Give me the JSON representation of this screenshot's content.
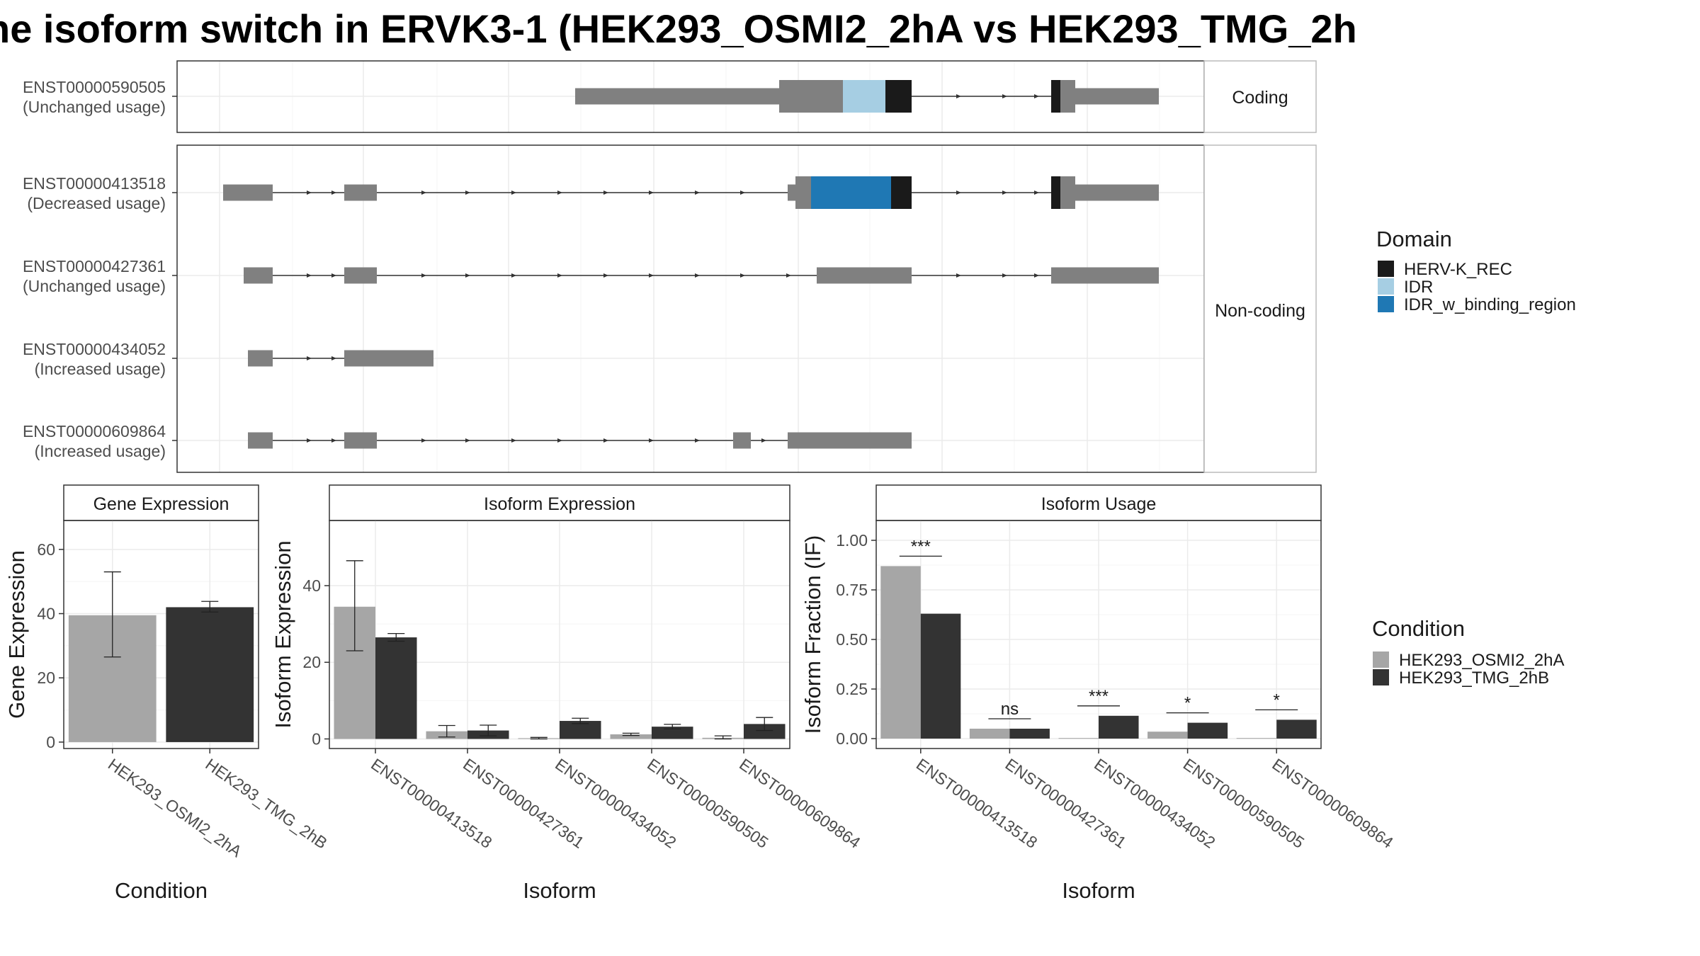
{
  "title": "ne isoform switch in ERVK3-1 (HEK293_OSMI2_2hA vs HEK293_TMG_2h",
  "colors": {
    "exon": "#808080",
    "HERV-K_REC": "#1a1a1a",
    "IDR": "#a6cee3",
    "IDR_w_binding_region": "#1f78b4",
    "HEK293_OSMI2_2hA": "#a6a6a6",
    "HEK293_TMG_2hB": "#333333"
  },
  "structure": {
    "facet_coding": "Coding",
    "facet_noncoding": "Non-coding",
    "domain_legend_title": "Domain",
    "domains": [
      "HERV-K_REC",
      "IDR",
      "IDR_w_binding_region"
    ],
    "transcripts": [
      {
        "id": "ENST00000590505",
        "usage": "(Unchanged usage)",
        "group": "coding"
      },
      {
        "id": "ENST00000413518",
        "usage": "(Decreased usage)",
        "group": "noncoding"
      },
      {
        "id": "ENST00000427361",
        "usage": "(Unchanged usage)",
        "group": "noncoding"
      },
      {
        "id": "ENST00000434052",
        "usage": "(Increased usage)",
        "group": "noncoding"
      },
      {
        "id": "ENST00000609864",
        "usage": "(Increased usage)",
        "group": "noncoding"
      }
    ]
  },
  "condition_legend": {
    "title": "Condition",
    "items": [
      "HEK293_OSMI2_2hA",
      "HEK293_TMG_2hB"
    ]
  },
  "chart_data": [
    {
      "type": "bar",
      "title": "Gene Expression",
      "xlabel": "Condition",
      "ylabel": "Gene Expression",
      "categories": [
        "HEK293_OSMI2_2hA",
        "HEK293_TMG_2hB"
      ],
      "values": [
        39.5,
        42.0
      ],
      "error_low": [
        26.5,
        40.5
      ],
      "error_high": [
        53.0,
        43.8
      ],
      "ylim": [
        -2,
        69
      ],
      "yticks": [
        0,
        20,
        40,
        60
      ],
      "ytick_labels": [
        "0",
        "20",
        "40",
        "60"
      ]
    },
    {
      "type": "bar",
      "title": "Isoform Expression",
      "xlabel": "Isoform",
      "ylabel": "Isoform Expression",
      "categories": [
        "ENST00000413518",
        "ENST00000427361",
        "ENST00000434052",
        "ENST00000590505",
        "ENST00000609864"
      ],
      "series": [
        {
          "name": "HEK293_OSMI2_2hA",
          "values": [
            34.5,
            2.0,
            0.2,
            1.2,
            0.3
          ],
          "error_low": [
            23.0,
            0.5,
            0.0,
            0.9,
            0.0
          ],
          "error_high": [
            46.5,
            3.5,
            0.4,
            1.5,
            0.8
          ]
        },
        {
          "name": "HEK293_TMG_2hB",
          "values": [
            26.5,
            2.2,
            4.7,
            3.2,
            3.9
          ],
          "error_low": [
            25.5,
            0.8,
            4.0,
            2.6,
            2.2
          ],
          "error_high": [
            27.5,
            3.6,
            5.4,
            3.8,
            5.6
          ]
        }
      ],
      "ylim": [
        -2.5,
        57
      ],
      "yticks": [
        0,
        20,
        40
      ],
      "ytick_labels": [
        "0",
        "20",
        "40"
      ]
    },
    {
      "type": "bar",
      "title": "Isoform Usage",
      "xlabel": "Isoform",
      "ylabel": "Isoform Fraction (IF)",
      "categories": [
        "ENST00000413518",
        "ENST00000427361",
        "ENST00000434052",
        "ENST00000590505",
        "ENST00000609864"
      ],
      "series": [
        {
          "name": "HEK293_OSMI2_2hA",
          "values": [
            0.87,
            0.05,
            0.003,
            0.035,
            0.003
          ]
        },
        {
          "name": "HEK293_TMG_2hB",
          "values": [
            0.63,
            0.05,
            0.115,
            0.08,
            0.095
          ]
        }
      ],
      "significance": [
        "***",
        "ns",
        "***",
        "*",
        "*"
      ],
      "ylim": [
        -0.05,
        1.1
      ],
      "yticks": [
        0,
        0.25,
        0.5,
        0.75,
        1.0
      ],
      "ytick_labels": [
        "0.00",
        "0.25",
        "0.50",
        "0.75",
        "1.00"
      ]
    }
  ]
}
